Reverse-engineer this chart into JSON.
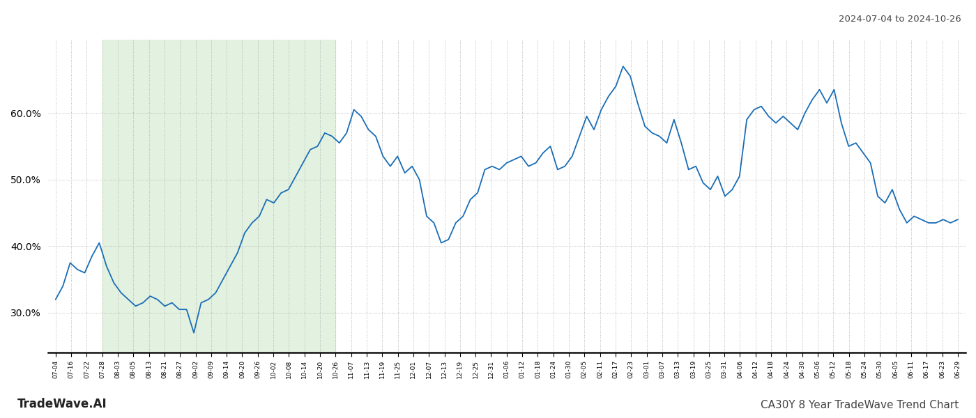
{
  "title_top_right": "2024-07-04 to 2024-10-26",
  "title_bottom_left": "TradeWave.AI",
  "title_bottom_right": "CA30Y 8 Year TradeWave Trend Chart",
  "background_color": "#ffffff",
  "line_color": "#1a6db5",
  "shade_color": "#d4ecd0",
  "shade_alpha": 0.65,
  "ylim": [
    24,
    71
  ],
  "yticks": [
    30.0,
    40.0,
    50.0,
    60.0
  ],
  "ytick_labels": [
    "30.0%",
    "40.0%",
    "50.0%",
    "60.0%"
  ],
  "x_labels": [
    "07-04",
    "07-16",
    "07-22",
    "07-28",
    "08-03",
    "08-05",
    "08-13",
    "08-21",
    "08-27",
    "09-02",
    "09-09",
    "09-14",
    "09-20",
    "09-26",
    "10-02",
    "10-08",
    "10-14",
    "10-20",
    "10-26",
    "11-07",
    "11-13",
    "11-19",
    "11-25",
    "12-01",
    "12-07",
    "12-13",
    "12-19",
    "12-25",
    "12-31",
    "01-06",
    "01-12",
    "01-18",
    "01-24",
    "01-30",
    "02-05",
    "02-11",
    "02-17",
    "02-23",
    "03-01",
    "03-07",
    "03-13",
    "03-19",
    "03-25",
    "03-31",
    "04-06",
    "04-12",
    "04-18",
    "04-24",
    "04-30",
    "05-06",
    "05-12",
    "05-18",
    "05-24",
    "05-30",
    "06-05",
    "06-11",
    "06-17",
    "06-23",
    "06-29"
  ],
  "shade_label_start": "07-28",
  "shade_label_end": "10-26",
  "values": [
    32.0,
    34.0,
    37.5,
    36.5,
    36.0,
    38.5,
    40.5,
    37.0,
    34.5,
    33.0,
    32.0,
    31.0,
    31.5,
    32.5,
    32.0,
    31.0,
    31.5,
    30.5,
    30.5,
    27.0,
    31.5,
    32.0,
    33.0,
    35.0,
    37.0,
    39.0,
    42.0,
    43.5,
    44.5,
    47.0,
    46.5,
    48.0,
    48.5,
    50.5,
    52.5,
    54.5,
    55.0,
    57.0,
    56.5,
    55.5,
    57.0,
    60.5,
    59.5,
    57.5,
    56.5,
    53.5,
    52.0,
    53.5,
    51.0,
    52.0,
    50.0,
    44.5,
    43.5,
    40.5,
    41.0,
    43.5,
    44.5,
    47.0,
    48.0,
    51.5,
    52.0,
    51.5,
    52.5,
    53.0,
    53.5,
    52.0,
    52.5,
    54.0,
    55.0,
    51.5,
    52.0,
    53.5,
    56.5,
    59.5,
    57.5,
    60.5,
    62.5,
    64.0,
    67.0,
    65.5,
    61.5,
    58.0,
    57.0,
    56.5,
    55.5,
    59.0,
    55.5,
    51.5,
    52.0,
    49.5,
    48.5,
    50.5,
    47.5,
    48.5,
    50.5,
    59.0,
    60.5,
    61.0,
    59.5,
    58.5,
    59.5,
    58.5,
    57.5,
    60.0,
    62.0,
    63.5,
    61.5,
    63.5,
    58.5,
    55.0,
    55.5,
    54.0,
    52.5,
    47.5,
    46.5,
    48.5,
    45.5,
    43.5,
    44.5,
    44.0,
    43.5,
    43.5,
    44.0,
    43.5,
    44.0
  ]
}
